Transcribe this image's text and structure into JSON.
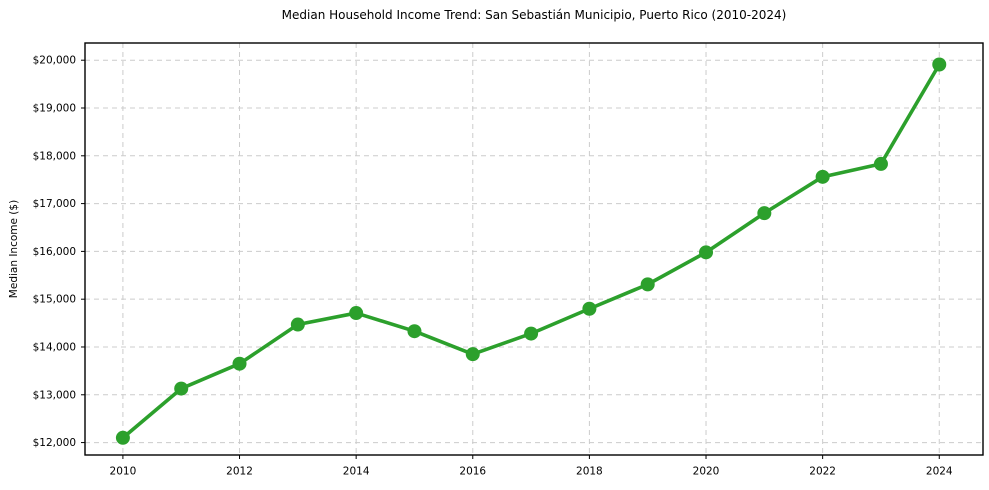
{
  "page": {
    "background": "#ffffff"
  },
  "chart_data": {
    "type": "line",
    "title": "Median Household Income Trend: San Sebastián Municipio, Puerto Rico (2010-2024)",
    "xlabel": "",
    "ylabel": "Median Income ($)",
    "x": [
      2010,
      2011,
      2012,
      2013,
      2014,
      2015,
      2016,
      2017,
      2018,
      2019,
      2020,
      2021,
      2022,
      2023,
      2024
    ],
    "values": [
      12100,
      13130,
      13650,
      14470,
      14710,
      14330,
      13850,
      14280,
      14800,
      15310,
      15980,
      16800,
      17560,
      17830,
      19910
    ],
    "x_ticks": {
      "values": [
        2010,
        2012,
        2014,
        2016,
        2018,
        2020,
        2022,
        2024
      ],
      "labels": [
        "2010",
        "2012",
        "2014",
        "2016",
        "2018",
        "2020",
        "2022",
        "2024"
      ]
    },
    "y_ticks": {
      "values": [
        12000,
        13000,
        14000,
        15000,
        16000,
        17000,
        18000,
        19000,
        20000
      ],
      "labels": [
        "$12,000",
        "$13,000",
        "$14,000",
        "$15,000",
        "$16,000",
        "$17,000",
        "$18,000",
        "$19,000",
        "$20,000"
      ]
    },
    "xlim": [
      2009.35,
      2024.75
    ],
    "ylim": [
      11740,
      20360
    ],
    "grid": true,
    "grid_style": "dashed",
    "legend": "none",
    "colors": {
      "line": "#2ca02c",
      "marker": "#2ca02c",
      "grid": "#cccccc",
      "axis": "#000000",
      "text": "#000000"
    },
    "style": {
      "line_width": 3.6,
      "marker_radius": 7,
      "grid_dash": "5,4"
    }
  }
}
